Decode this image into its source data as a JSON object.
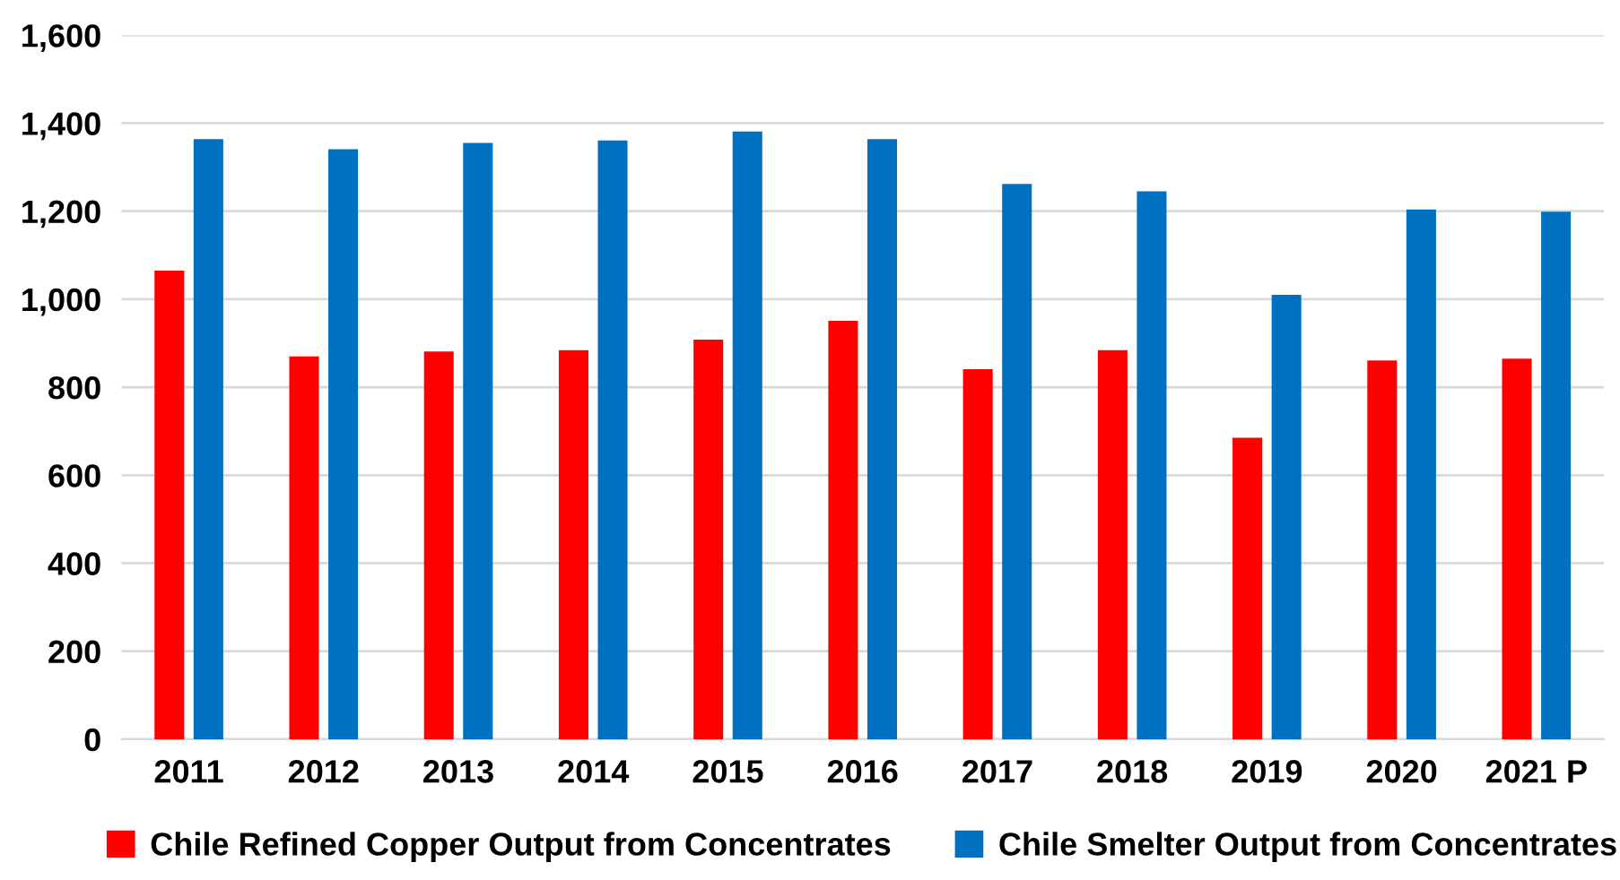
{
  "chart_data": {
    "type": "bar",
    "categories": [
      "2011",
      "2012",
      "2013",
      "2014",
      "2015",
      "2016",
      "2017",
      "2018",
      "2019",
      "2020",
      "2021 P"
    ],
    "series": [
      {
        "name": "Chile Refined Copper Output from Concentrates",
        "color": "#ff0000",
        "values": [
          1065,
          870,
          881,
          884,
          908,
          951,
          841,
          884,
          685,
          861,
          865
        ]
      },
      {
        "name": "Chile Smelter Output from Concentrates",
        "color": "#0070c0",
        "values": [
          1364,
          1341,
          1355,
          1361,
          1381,
          1364,
          1262,
          1245,
          1010,
          1204,
          1199
        ]
      }
    ],
    "ylim": [
      0,
      1600
    ],
    "yticks": [
      {
        "value": 0,
        "label": "0"
      },
      {
        "value": 200,
        "label": "200"
      },
      {
        "value": 400,
        "label": "400"
      },
      {
        "value": 600,
        "label": "600"
      },
      {
        "value": 800,
        "label": "800"
      },
      {
        "value": 1000,
        "label": "1,000"
      },
      {
        "value": 1200,
        "label": "1,200"
      },
      {
        "value": 1400,
        "label": "1,400"
      },
      {
        "value": 1600,
        "label": "1,600"
      }
    ],
    "grid": "y",
    "legend": "bottom"
  }
}
